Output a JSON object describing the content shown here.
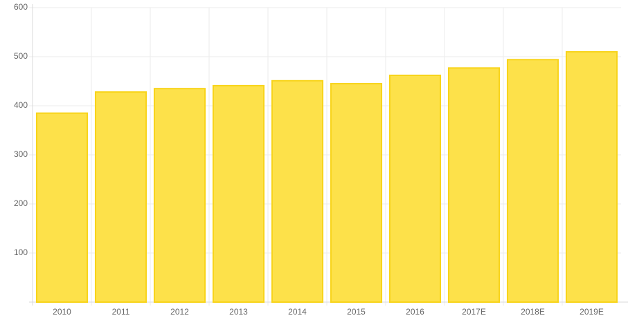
{
  "chart_data": {
    "type": "bar",
    "categories": [
      "2010",
      "2011",
      "2012",
      "2013",
      "2014",
      "2015",
      "2016",
      "2017E",
      "2018E",
      "2019E"
    ],
    "values": [
      385,
      428,
      435,
      441,
      451,
      445,
      462,
      477,
      494,
      510
    ],
    "color": "#fde14a",
    "border_color": "#f8d41a",
    "ylim": [
      0,
      600
    ],
    "yticks": [
      100,
      200,
      300,
      400,
      500,
      600
    ],
    "grid": true
  }
}
